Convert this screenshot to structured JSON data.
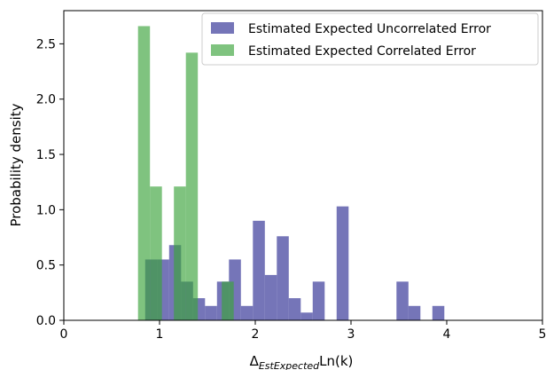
{
  "chart_data": {
    "type": "bar",
    "xlabel": {
      "main": "Δ",
      "subscript": "EstExpected",
      "suffix": "Ln(k)"
    },
    "ylabel": "Probability density",
    "xlim": [
      0,
      5
    ],
    "ylim": [
      0,
      2.8
    ],
    "xticks": [
      0,
      1,
      2,
      3,
      4,
      5
    ],
    "yticks": [
      0.0,
      0.5,
      1.0,
      1.5,
      2.0,
      2.5
    ],
    "xtick_labels": [
      "0",
      "1",
      "2",
      "3",
      "4",
      "5"
    ],
    "ytick_labels": [
      "0.0",
      "0.5",
      "1.0",
      "1.5",
      "2.0",
      "2.5"
    ],
    "grid": false,
    "legend": "top-right",
    "series": [
      {
        "name": "Estimated Expected Uncorrelated Error",
        "color": "#3a3b9a",
        "opacity": 0.7,
        "bins": [
          [
            0.85,
            0.975,
            0.55
          ],
          [
            0.975,
            1.1,
            0.55
          ],
          [
            1.1,
            1.225,
            0.68
          ],
          [
            1.225,
            1.35,
            0.35
          ],
          [
            1.35,
            1.475,
            0.2
          ],
          [
            1.475,
            1.6,
            0.13
          ],
          [
            1.6,
            1.725,
            0.35
          ],
          [
            1.725,
            1.85,
            0.55
          ],
          [
            1.85,
            1.975,
            0.13
          ],
          [
            1.975,
            2.1,
            0.9
          ],
          [
            2.1,
            2.225,
            0.41
          ],
          [
            2.225,
            2.35,
            0.76
          ],
          [
            2.35,
            2.475,
            0.2
          ],
          [
            2.475,
            2.6,
            0.07
          ],
          [
            2.6,
            2.725,
            0.35
          ],
          [
            2.85,
            2.975,
            1.03
          ],
          [
            3.475,
            3.6,
            0.35
          ],
          [
            3.6,
            3.725,
            0.13
          ],
          [
            3.85,
            3.975,
            0.13
          ]
        ]
      },
      {
        "name": "Estimated Expected Correlated Error",
        "color": "#3aa33a",
        "opacity": 0.65,
        "bins": [
          [
            0.775,
            0.9,
            2.66
          ],
          [
            0.9,
            1.025,
            1.21
          ],
          [
            1.15,
            1.275,
            1.21
          ],
          [
            1.275,
            1.4,
            2.42
          ],
          [
            1.65,
            1.775,
            0.35
          ]
        ]
      }
    ]
  }
}
